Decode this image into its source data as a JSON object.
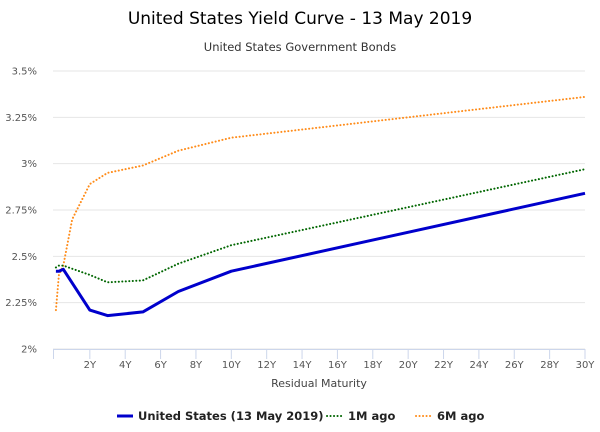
{
  "chart_data": {
    "type": "line",
    "title": "United States Yield Curve - 13 May 2019",
    "subtitle": "United States Government Bonds",
    "xlabel": "Residual Maturity",
    "ylabel": "",
    "xlim": [
      -0.083,
      30
    ],
    "ylim": [
      2.0,
      3.5
    ],
    "x_ticks": [
      {
        "value": 2,
        "label": "2Y"
      },
      {
        "value": 4,
        "label": "4Y"
      },
      {
        "value": 6,
        "label": "6Y"
      },
      {
        "value": 8,
        "label": "8Y"
      },
      {
        "value": 10,
        "label": "10Y"
      },
      {
        "value": 12,
        "label": "12Y"
      },
      {
        "value": 14,
        "label": "14Y"
      },
      {
        "value": 16,
        "label": "16Y"
      },
      {
        "value": 18,
        "label": "18Y"
      },
      {
        "value": 20,
        "label": "20Y"
      },
      {
        "value": 22,
        "label": "22Y"
      },
      {
        "value": 24,
        "label": "24Y"
      },
      {
        "value": 26,
        "label": "26Y"
      },
      {
        "value": 28,
        "label": "28Y"
      },
      {
        "value": 30,
        "label": "30Y"
      }
    ],
    "y_ticks": [
      {
        "value": 2.0,
        "label": "2%"
      },
      {
        "value": 2.25,
        "label": "2.25%"
      },
      {
        "value": 2.5,
        "label": "2.5%"
      },
      {
        "value": 2.75,
        "label": "2.75%"
      },
      {
        "value": 3.0,
        "label": "3%"
      },
      {
        "value": 3.25,
        "label": "3.25%"
      },
      {
        "value": 3.5,
        "label": "3.5%"
      }
    ],
    "grid": "horizontal",
    "legend_position": "bottom",
    "series": [
      {
        "name": "United States (13 May 2019)",
        "color": "#0000cc",
        "style": "solid",
        "x": [
          0.083,
          0.25,
          0.5,
          2,
          3,
          5,
          7,
          10,
          30
        ],
        "y": [
          2.42,
          2.42,
          2.43,
          2.21,
          2.18,
          2.2,
          2.31,
          2.42,
          2.84
        ]
      },
      {
        "name": "1M ago",
        "color": "#006600",
        "style": "dotted",
        "x": [
          0.083,
          0.25,
          0.5,
          2,
          3,
          5,
          7,
          10,
          30
        ],
        "y": [
          2.44,
          2.45,
          2.45,
          2.4,
          2.36,
          2.37,
          2.46,
          2.56,
          2.97
        ]
      },
      {
        "name": "6M ago",
        "color": "#ff8c1a",
        "style": "dotted",
        "x": [
          0.083,
          0.25,
          0.5,
          1,
          2,
          3,
          5,
          7,
          10,
          30
        ],
        "y": [
          2.21,
          2.4,
          2.45,
          2.7,
          2.89,
          2.95,
          2.99,
          3.07,
          3.14,
          3.36
        ]
      }
    ]
  }
}
